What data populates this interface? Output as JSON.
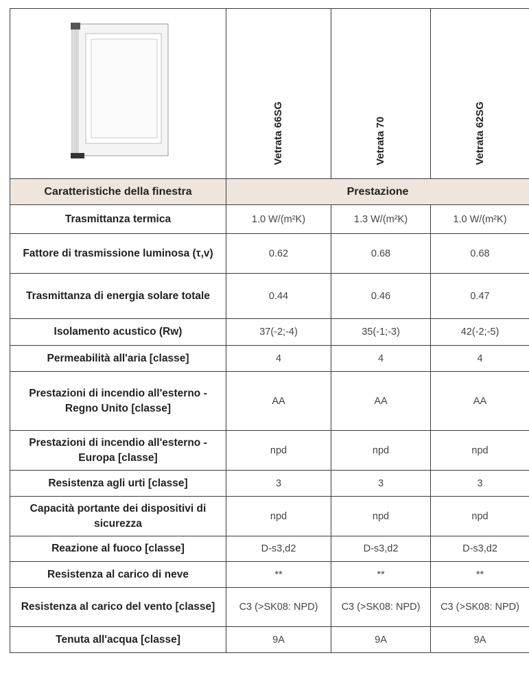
{
  "table": {
    "columns": [
      "Vetrata 66SG",
      "Vetrata 70",
      "Vetrata 62SG"
    ],
    "header": [
      "Caratteristiche della finestra",
      "Prestazione"
    ],
    "rows": [
      {
        "label": "Trasmittanza termica",
        "values": [
          "1.0 W/(m²K)",
          "1.3 W/(m²K)",
          "1.0 W/(m²K)"
        ]
      },
      {
        "label": "Fattore di trasmissione luminosa (τ,v)",
        "values": [
          "0.62",
          "0.68",
          "0.68"
        ]
      },
      {
        "label": "Trasmittanza di energia solare totale",
        "values": [
          "0.44",
          "0.46",
          "0.47"
        ]
      },
      {
        "label": "Isolamento acustico (Rw)",
        "values": [
          "37(-2;-4)",
          "35(-1;-3)",
          "42(-2;-5)"
        ]
      },
      {
        "label": "Permeabilità all'aria [classe]",
        "values": [
          "4",
          "4",
          "4"
        ]
      },
      {
        "label": "Prestazioni di incendio all'esterno - Regno Unito [classe]",
        "values": [
          "AA",
          "AA",
          "AA"
        ]
      },
      {
        "label": "Prestazioni di incendio all'esterno - Europa [classe]",
        "values": [
          "npd",
          "npd",
          "npd"
        ]
      },
      {
        "label": "Resistenza agli urti [classe]",
        "values": [
          "3",
          "3",
          "3"
        ]
      },
      {
        "label": "Capacità portante dei dispositivi di sicurezza",
        "values": [
          "npd",
          "npd",
          "npd"
        ]
      },
      {
        "label": "Reazione al fuoco [classe]",
        "values": [
          "D-s3,d2",
          "D-s3,d2",
          "D-s3,d2"
        ]
      },
      {
        "label": "Resistenza al carico di neve",
        "values": [
          "**",
          "**",
          "**"
        ]
      },
      {
        "label": "Resistenza al carico del vento [classe]",
        "values": [
          "C3 (>SK08: NPD)",
          "C3 (>SK08: NPD)",
          "C3 (>SK08: NPD)"
        ]
      },
      {
        "label": "Tenuta all'acqua [classe]",
        "values": [
          "9A",
          "9A",
          "9A"
        ]
      }
    ]
  }
}
